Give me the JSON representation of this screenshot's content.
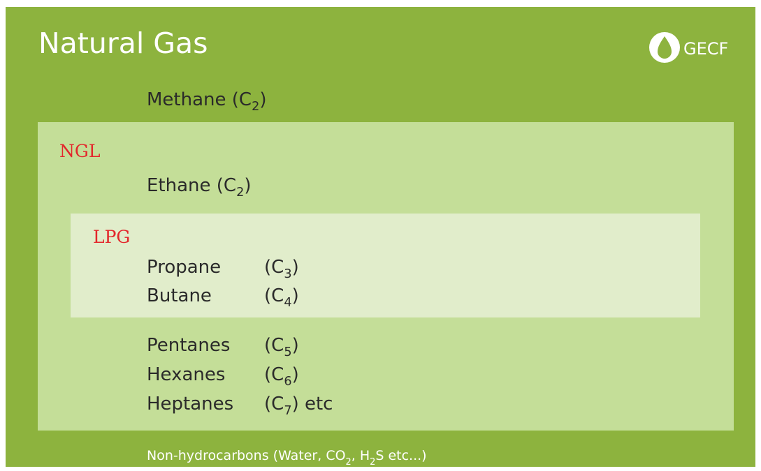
{
  "header": {
    "title": "Natural Gas",
    "logo": "GECF"
  },
  "methane": [
    "Methane (C",
    "2",
    ")"
  ],
  "ngl": {
    "label": "NGL",
    "ethane": [
      "Ethane (C",
      "2",
      ")"
    ],
    "lpg": {
      "label": "LPG",
      "items": [
        {
          "name": "Propane",
          "formula": [
            "(C",
            "3",
            ")"
          ]
        },
        {
          "name": "Butane",
          "formula": [
            "(C",
            "4",
            ")"
          ]
        }
      ]
    },
    "items": [
      {
        "name": "Pentanes",
        "formula": [
          "(C",
          "5",
          ")"
        ]
      },
      {
        "name": "Hexanes",
        "formula": [
          "(C",
          "6",
          ")"
        ]
      },
      {
        "name": "Heptanes",
        "formula": [
          "(C",
          "7",
          ") etc"
        ]
      }
    ]
  },
  "footer": [
    "Non-hydrocarbons (Water, CO",
    "2",
    ", H",
    "2",
    "S etc...)"
  ]
}
